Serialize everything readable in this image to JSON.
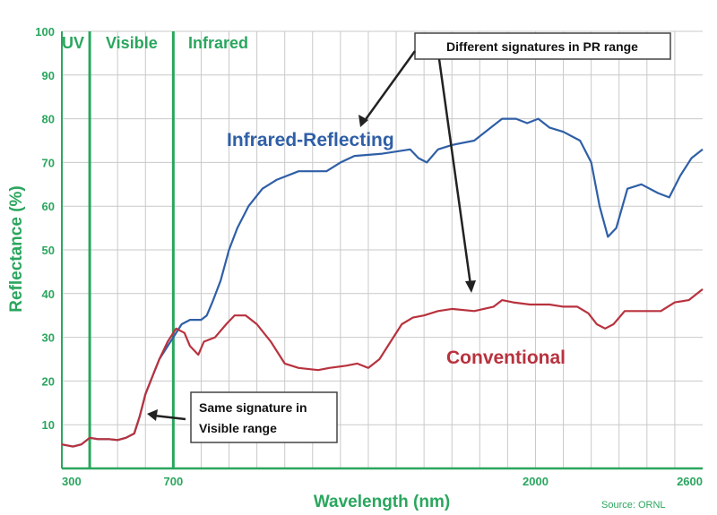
{
  "chart_data": {
    "type": "line",
    "title": "",
    "xlabel": "Wavelength (nm)",
    "ylabel": "Reflectance (%)",
    "xlim": [
      300,
      2600
    ],
    "ylim": [
      0,
      100
    ],
    "x_ticks": [
      300,
      700,
      2000,
      2600
    ],
    "y_ticks": [
      10,
      20,
      30,
      40,
      50,
      60,
      70,
      80,
      90,
      100
    ],
    "grid": true,
    "regions": [
      {
        "label": "UV",
        "from": 300,
        "to": 400
      },
      {
        "label": "Visible",
        "from": 400,
        "to": 700
      },
      {
        "label": "Infrared",
        "from": 700,
        "to": 2600
      }
    ],
    "region_boundaries": [
      400,
      700
    ],
    "series": [
      {
        "name": "Infrared-Reflecting",
        "color": "#2f5fa6",
        "points": [
          [
            300,
            5.5
          ],
          [
            340,
            5
          ],
          [
            370,
            5.5
          ],
          [
            400,
            7
          ],
          [
            430,
            6.7
          ],
          [
            470,
            6.7
          ],
          [
            500,
            6.5
          ],
          [
            530,
            7
          ],
          [
            560,
            8
          ],
          [
            580,
            12
          ],
          [
            600,
            17
          ],
          [
            625,
            21
          ],
          [
            650,
            25
          ],
          [
            680,
            28
          ],
          [
            710,
            31
          ],
          [
            730,
            33
          ],
          [
            760,
            34
          ],
          [
            800,
            34
          ],
          [
            820,
            35
          ],
          [
            840,
            38
          ],
          [
            870,
            43
          ],
          [
            900,
            50
          ],
          [
            930,
            55
          ],
          [
            970,
            60
          ],
          [
            1020,
            64
          ],
          [
            1070,
            66
          ],
          [
            1150,
            68
          ],
          [
            1250,
            68
          ],
          [
            1300,
            70
          ],
          [
            1350,
            71.5
          ],
          [
            1450,
            72
          ],
          [
            1550,
            73
          ],
          [
            1580,
            71
          ],
          [
            1610,
            70
          ],
          [
            1650,
            73
          ],
          [
            1700,
            74
          ],
          [
            1780,
            75
          ],
          [
            1840,
            78
          ],
          [
            1880,
            80
          ],
          [
            1930,
            80
          ],
          [
            1970,
            79
          ],
          [
            2010,
            80
          ],
          [
            2050,
            78
          ],
          [
            2100,
            77
          ],
          [
            2160,
            75
          ],
          [
            2200,
            70
          ],
          [
            2230,
            60
          ],
          [
            2260,
            53
          ],
          [
            2290,
            55
          ],
          [
            2330,
            64
          ],
          [
            2380,
            65
          ],
          [
            2440,
            63
          ],
          [
            2480,
            62
          ],
          [
            2520,
            67
          ],
          [
            2560,
            71
          ],
          [
            2600,
            73
          ]
        ]
      },
      {
        "name": "Conventional",
        "color": "#b8323e",
        "points": [
          [
            300,
            5.5
          ],
          [
            340,
            5
          ],
          [
            370,
            5.5
          ],
          [
            400,
            7
          ],
          [
            430,
            6.7
          ],
          [
            470,
            6.7
          ],
          [
            500,
            6.5
          ],
          [
            530,
            7
          ],
          [
            560,
            8
          ],
          [
            580,
            12
          ],
          [
            600,
            17
          ],
          [
            625,
            21
          ],
          [
            650,
            25
          ],
          [
            680,
            29
          ],
          [
            710,
            32
          ],
          [
            740,
            31
          ],
          [
            760,
            28
          ],
          [
            790,
            26
          ],
          [
            810,
            29
          ],
          [
            850,
            30
          ],
          [
            890,
            33
          ],
          [
            920,
            35
          ],
          [
            960,
            35
          ],
          [
            1000,
            33
          ],
          [
            1050,
            29
          ],
          [
            1100,
            24
          ],
          [
            1150,
            23
          ],
          [
            1220,
            22.5
          ],
          [
            1260,
            23
          ],
          [
            1320,
            23.5
          ],
          [
            1360,
            24
          ],
          [
            1400,
            23
          ],
          [
            1440,
            25
          ],
          [
            1480,
            29
          ],
          [
            1520,
            33
          ],
          [
            1560,
            34.5
          ],
          [
            1600,
            35
          ],
          [
            1650,
            36
          ],
          [
            1700,
            36.5
          ],
          [
            1780,
            36
          ],
          [
            1850,
            37
          ],
          [
            1880,
            38.5
          ],
          [
            1920,
            38
          ],
          [
            1980,
            37.5
          ],
          [
            2050,
            37.5
          ],
          [
            2100,
            37
          ],
          [
            2150,
            37
          ],
          [
            2190,
            35.5
          ],
          [
            2220,
            33
          ],
          [
            2250,
            32
          ],
          [
            2280,
            33
          ],
          [
            2320,
            36
          ],
          [
            2400,
            36
          ],
          [
            2450,
            36
          ],
          [
            2500,
            38
          ],
          [
            2550,
            38.5
          ],
          [
            2600,
            41
          ]
        ]
      }
    ],
    "annotations": [
      {
        "text": "Different signatures in PR range",
        "target": "both series near 1200–1700 nm"
      },
      {
        "text_lines": [
          "Same signature in",
          "Visible range"
        ],
        "target": "overlapping curves near 600 nm"
      }
    ],
    "source": "Source: ORNL"
  }
}
